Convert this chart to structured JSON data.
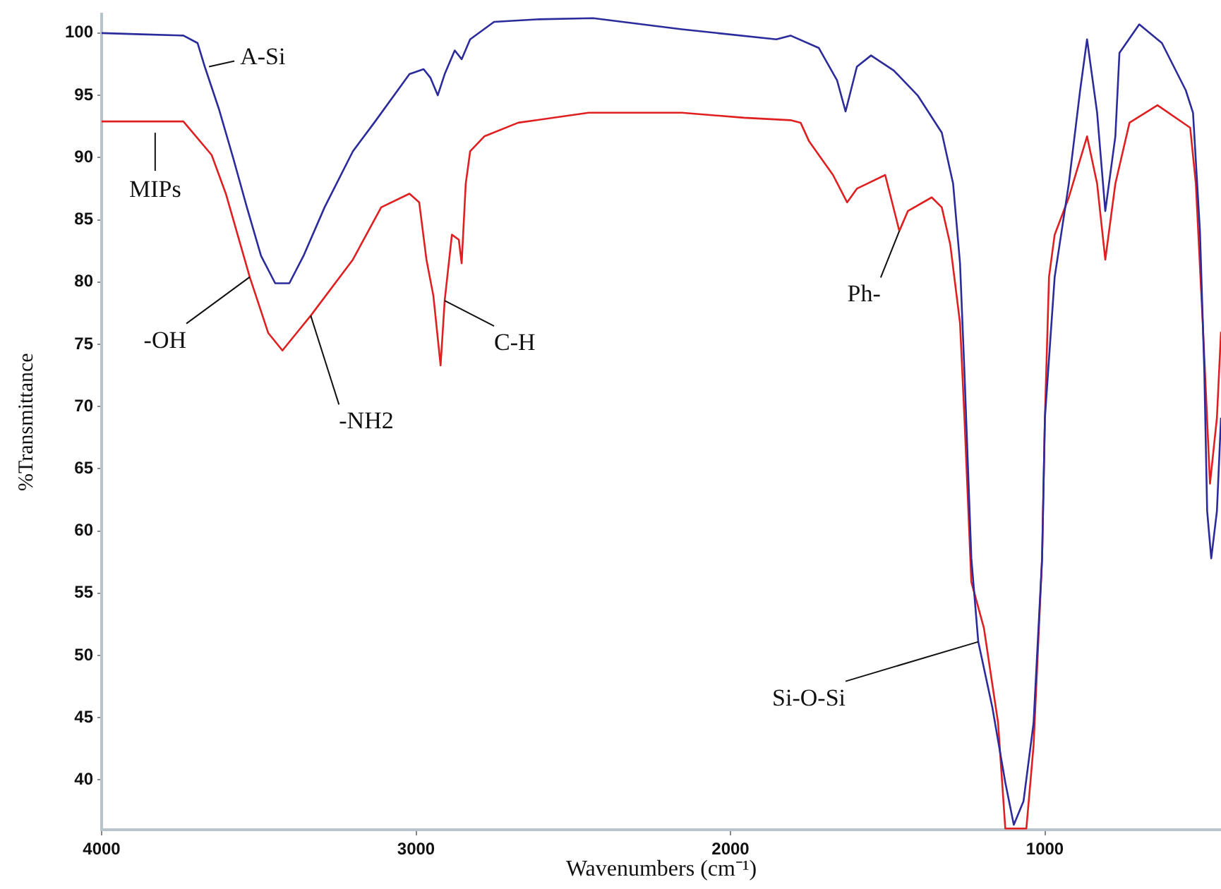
{
  "chart_data": {
    "type": "line",
    "xlabel": "Wavenumbers (cm⁻¹)",
    "ylabel": "%Transmittance",
    "xlim": [
      4000,
      440
    ],
    "xticks": [
      4000,
      3000,
      2000,
      1000
    ],
    "ylim": [
      36,
      101.5
    ],
    "yticks": [
      40,
      45,
      50,
      55,
      60,
      65,
      70,
      75,
      80,
      85,
      90,
      95,
      100
    ],
    "grid": false,
    "legend": false,
    "marker": "none",
    "line_style": "solid",
    "series": [
      {
        "name": "A-Si",
        "color": "#2b2b9c",
        "x": [
          4000,
          3874,
          3740,
          3695,
          3672,
          3627,
          3582,
          3538,
          3493,
          3448,
          3403,
          3358,
          3291,
          3201,
          3133,
          3021,
          2976,
          2954,
          2931,
          2909,
          2877,
          2855,
          2828,
          2752,
          2617,
          2437,
          2155,
          1854,
          1809,
          1719,
          1661,
          1634,
          1598,
          1553,
          1481,
          1405,
          1328,
          1292,
          1270,
          1256,
          1234,
          1212,
          1167,
          1126,
          1099,
          1068,
          1036,
          1009,
          1000,
          969,
          924,
          888,
          866,
          834,
          808,
          776,
          763,
          700,
          628,
          552,
          529,
          507,
          493,
          484,
          471,
          453,
          440
        ],
        "values": [
          100.0,
          99.9,
          99.8,
          99.2,
          97.3,
          93.9,
          90.0,
          86.0,
          82.1,
          79.9,
          79.9,
          82.1,
          86.0,
          90.5,
          92.8,
          96.7,
          97.1,
          96.4,
          95.0,
          96.7,
          98.6,
          97.9,
          99.5,
          100.9,
          101.1,
          101.2,
          100.3,
          99.5,
          99.8,
          98.8,
          96.2,
          93.7,
          97.3,
          98.2,
          97.0,
          95.0,
          92.0,
          87.9,
          81.5,
          72.8,
          57.8,
          51.1,
          45.8,
          39.8,
          36.4,
          38.3,
          44.6,
          57.8,
          69.1,
          80.4,
          87.9,
          95.4,
          99.5,
          93.6,
          85.7,
          91.7,
          98.4,
          100.7,
          99.2,
          95.4,
          93.6,
          84.1,
          72.8,
          61.6,
          57.8,
          61.6,
          69.1
        ]
      },
      {
        "name": "MIPs",
        "color": "#e02020",
        "x": [
          4000,
          3740,
          3650,
          3605,
          3529,
          3470,
          3425,
          3380,
          3335,
          3201,
          3111,
          3021,
          2990,
          2967,
          2945,
          2922,
          2909,
          2886,
          2864,
          2855,
          2842,
          2828,
          2783,
          2675,
          2451,
          2155,
          1957,
          1809,
          1777,
          1750,
          1674,
          1629,
          1598,
          1508,
          1463,
          1436,
          1360,
          1328,
          1301,
          1270,
          1256,
          1234,
          1194,
          1149,
          1126,
          1059,
          1036,
          1009,
          1000,
          987,
          969,
          924,
          866,
          834,
          808,
          776,
          731,
          642,
          538,
          520,
          498,
          475,
          453,
          440
        ],
        "values": [
          92.9,
          92.9,
          90.2,
          87.1,
          80.4,
          75.9,
          74.5,
          75.9,
          77.3,
          81.8,
          86.0,
          87.1,
          86.4,
          81.8,
          78.9,
          73.3,
          78.5,
          83.8,
          83.4,
          81.5,
          87.9,
          90.5,
          91.7,
          92.8,
          93.6,
          93.6,
          93.2,
          93.0,
          92.8,
          91.3,
          88.6,
          86.4,
          87.5,
          88.6,
          84.1,
          85.7,
          86.8,
          86.0,
          83.0,
          76.7,
          69.1,
          55.9,
          52.2,
          44.6,
          36.1,
          36.1,
          42.8,
          57.8,
          69.1,
          80.4,
          83.8,
          86.8,
          91.7,
          87.9,
          81.8,
          87.9,
          92.8,
          94.2,
          92.4,
          87.9,
          76.7,
          63.8,
          69.1,
          76.0
        ]
      }
    ],
    "annotations": [
      {
        "text": "-OH",
        "x": 3529,
        "y": 80.4
      },
      {
        "text": "-NH2",
        "x": 3335,
        "y": 77.3
      },
      {
        "text": "C-H",
        "x": 2909,
        "y": 78.5
      },
      {
        "text": "Ph-",
        "x": 1463,
        "y": 84.1
      },
      {
        "text": "Si-O-Si",
        "x": 1212,
        "y": 51.1
      }
    ]
  }
}
